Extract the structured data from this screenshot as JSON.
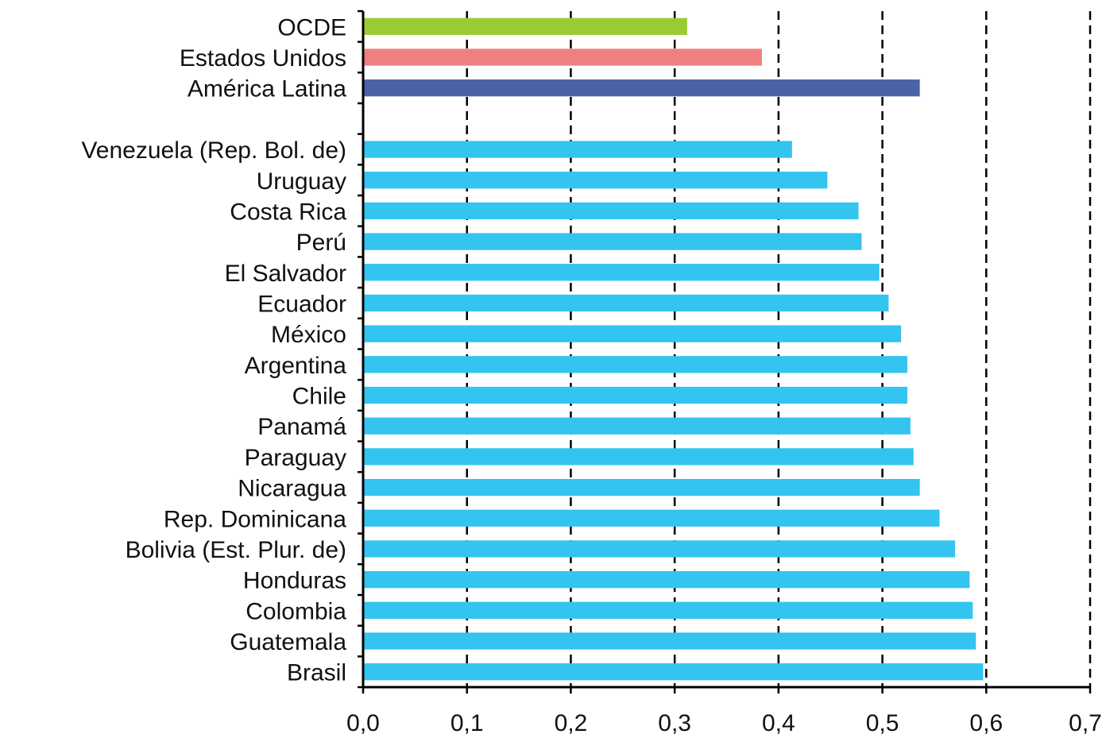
{
  "chart_data": {
    "type": "bar",
    "orientation": "horizontal",
    "title": "",
    "xlabel": "",
    "ylabel": "",
    "xlim": [
      0,
      0.7
    ],
    "x_ticks": [
      "0,0",
      "0,1",
      "0,2",
      "0,3",
      "0,4",
      "0,5",
      "0,6",
      "0,7"
    ],
    "grid": "vertical dashed at major ticks",
    "legend": "none",
    "categories": [
      "OCDE",
      "Estados Unidos",
      "América Latina",
      "",
      "Venezuela (Rep. Bol. de)",
      "Uruguay",
      "Costa Rica",
      "Perú",
      "El Salvador",
      "Ecuador",
      "México",
      "Argentina",
      "Chile",
      "Panamá",
      "Paraguay",
      "Nicaragua",
      "Rep. Dominicana",
      "Bolivia (Est. Plur. de)",
      "Honduras",
      "Colombia",
      "Guatemala",
      "Brasil"
    ],
    "values": [
      0.312,
      0.384,
      0.536,
      null,
      0.413,
      0.447,
      0.477,
      0.48,
      0.497,
      0.506,
      0.518,
      0.524,
      0.524,
      0.527,
      0.53,
      0.536,
      0.555,
      0.57,
      0.584,
      0.587,
      0.59,
      0.597
    ],
    "colors": [
      "#99cc33",
      "#f08080",
      "#4a62a8",
      null,
      "#33c4f0",
      "#33c4f0",
      "#33c4f0",
      "#33c4f0",
      "#33c4f0",
      "#33c4f0",
      "#33c4f0",
      "#33c4f0",
      "#33c4f0",
      "#33c4f0",
      "#33c4f0",
      "#33c4f0",
      "#33c4f0",
      "#33c4f0",
      "#33c4f0",
      "#33c4f0",
      "#33c4f0",
      "#33c4f0"
    ]
  }
}
